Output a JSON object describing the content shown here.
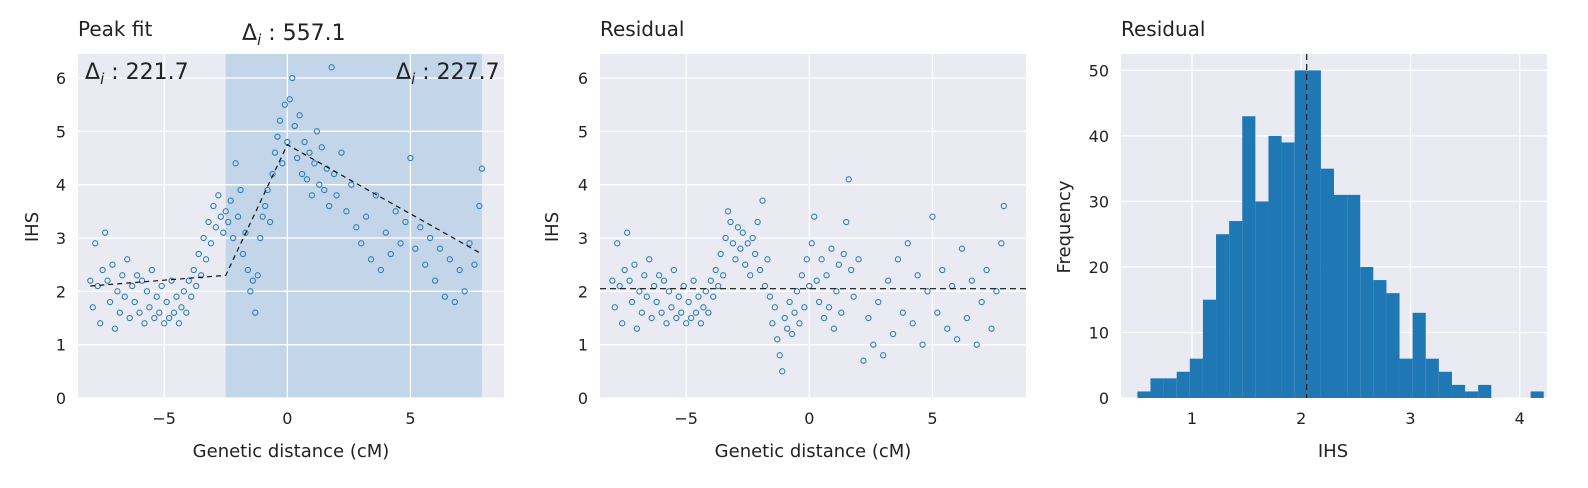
{
  "figure": {
    "panels": [
      {
        "title": "Peak fit",
        "xlabel": "Genetic distance (cM)",
        "ylabel": "IHS"
      },
      {
        "title": "Residual",
        "xlabel": "Genetic distance (cM)",
        "ylabel": "IHS"
      },
      {
        "title": "Residual",
        "xlabel": "IHS",
        "ylabel": "Frequency"
      }
    ],
    "annotations": {
      "top": {
        "symbol": "Δ",
        "sub": "i",
        "text": " : 557.1"
      },
      "left": {
        "symbol": "Δ",
        "sub": "i",
        "text": " : 221.7"
      },
      "right": {
        "symbol": "Δ",
        "sub": "i",
        "text": " : 227.7"
      }
    }
  },
  "colors": {
    "axes_bg": "#e9eaf2",
    "grid": "#ffffff",
    "marker": "#2f7fb8",
    "bar": "#1f77b4",
    "shade": "#a9c7e3",
    "line": "#111111"
  },
  "chart_data": [
    {
      "type": "scatter",
      "title": "Peak fit",
      "xlabel": "Genetic distance (cM)",
      "ylabel": "IHS",
      "xlim": [
        -8.5,
        8.8
      ],
      "ylim": [
        0,
        6.45
      ],
      "xticks": [
        -5,
        0,
        5
      ],
      "yticks": [
        0,
        1,
        2,
        3,
        4,
        5,
        6
      ],
      "grid": true,
      "marker": "open circle",
      "shaded_region": [
        -2.5,
        7.9
      ],
      "fit_line": {
        "x": [
          -8.0,
          -2.5,
          0.0,
          7.9
        ],
        "y": [
          2.1,
          2.3,
          4.75,
          2.7
        ],
        "style": "dashed"
      },
      "points": [
        [
          -8.0,
          2.2
        ],
        [
          -7.9,
          1.7
        ],
        [
          -7.8,
          2.9
        ],
        [
          -7.7,
          2.1
        ],
        [
          -7.6,
          1.4
        ],
        [
          -7.5,
          2.4
        ],
        [
          -7.4,
          3.1
        ],
        [
          -7.3,
          2.2
        ],
        [
          -7.2,
          1.8
        ],
        [
          -7.1,
          2.5
        ],
        [
          -7.0,
          1.3
        ],
        [
          -6.9,
          2.0
        ],
        [
          -6.8,
          1.6
        ],
        [
          -6.7,
          2.3
        ],
        [
          -6.6,
          1.9
        ],
        [
          -6.5,
          2.6
        ],
        [
          -6.4,
          1.5
        ],
        [
          -6.3,
          2.1
        ],
        [
          -6.2,
          1.8
        ],
        [
          -6.1,
          2.3
        ],
        [
          -6.0,
          1.6
        ],
        [
          -5.9,
          2.2
        ],
        [
          -5.8,
          1.4
        ],
        [
          -5.7,
          2.0
        ],
        [
          -5.6,
          1.7
        ],
        [
          -5.5,
          2.4
        ],
        [
          -5.4,
          1.5
        ],
        [
          -5.3,
          1.9
        ],
        [
          -5.2,
          1.6
        ],
        [
          -5.1,
          2.1
        ],
        [
          -5.0,
          1.4
        ],
        [
          -4.9,
          1.8
        ],
        [
          -4.8,
          1.5
        ],
        [
          -4.7,
          2.2
        ],
        [
          -4.6,
          1.6
        ],
        [
          -4.5,
          1.9
        ],
        [
          -4.4,
          1.4
        ],
        [
          -4.3,
          1.7
        ],
        [
          -4.2,
          2.0
        ],
        [
          -4.1,
          1.6
        ],
        [
          -4.0,
          2.2
        ],
        [
          -3.9,
          1.9
        ],
        [
          -3.8,
          2.4
        ],
        [
          -3.7,
          2.1
        ],
        [
          -3.6,
          2.7
        ],
        [
          -3.5,
          2.3
        ],
        [
          -3.4,
          3.0
        ],
        [
          -3.3,
          2.6
        ],
        [
          -3.2,
          3.3
        ],
        [
          -3.1,
          2.9
        ],
        [
          -3.0,
          3.6
        ],
        [
          -2.9,
          3.2
        ],
        [
          -2.8,
          3.8
        ],
        [
          -2.7,
          3.4
        ],
        [
          -2.6,
          3.1
        ],
        [
          -2.5,
          3.5
        ],
        [
          -2.4,
          3.3
        ],
        [
          -2.3,
          3.7
        ],
        [
          -2.2,
          3.0
        ],
        [
          -2.1,
          4.4
        ],
        [
          -2.0,
          3.4
        ],
        [
          -1.9,
          3.9
        ],
        [
          -1.8,
          2.7
        ],
        [
          -1.7,
          3.1
        ],
        [
          -1.6,
          2.4
        ],
        [
          -1.5,
          2.0
        ],
        [
          -1.4,
          2.2
        ],
        [
          -1.3,
          1.6
        ],
        [
          -1.2,
          2.3
        ],
        [
          -1.1,
          3.0
        ],
        [
          -1.0,
          3.4
        ],
        [
          -0.9,
          3.6
        ],
        [
          -0.8,
          3.9
        ],
        [
          -0.7,
          3.3
        ],
        [
          -0.6,
          4.2
        ],
        [
          -0.5,
          4.6
        ],
        [
          -0.4,
          4.9
        ],
        [
          -0.3,
          5.2
        ],
        [
          -0.2,
          4.4
        ],
        [
          -0.1,
          5.5
        ],
        [
          0.0,
          4.8
        ],
        [
          0.1,
          5.6
        ],
        [
          0.2,
          6.0
        ],
        [
          0.3,
          5.1
        ],
        [
          0.4,
          4.5
        ],
        [
          0.5,
          5.3
        ],
        [
          0.6,
          4.2
        ],
        [
          0.7,
          4.8
        ],
        [
          0.8,
          4.1
        ],
        [
          0.9,
          4.6
        ],
        [
          1.0,
          3.8
        ],
        [
          1.1,
          4.4
        ],
        [
          1.2,
          5.0
        ],
        [
          1.3,
          4.0
        ],
        [
          1.4,
          4.7
        ],
        [
          1.5,
          3.9
        ],
        [
          1.6,
          4.3
        ],
        [
          1.7,
          3.6
        ],
        [
          1.8,
          6.2
        ],
        [
          1.9,
          4.2
        ],
        [
          2.0,
          3.8
        ],
        [
          2.2,
          4.6
        ],
        [
          2.4,
          3.5
        ],
        [
          2.6,
          4.0
        ],
        [
          2.8,
          3.2
        ],
        [
          3.0,
          2.9
        ],
        [
          3.2,
          3.4
        ],
        [
          3.4,
          2.6
        ],
        [
          3.6,
          3.8
        ],
        [
          3.8,
          2.4
        ],
        [
          4.0,
          3.1
        ],
        [
          4.2,
          2.7
        ],
        [
          4.4,
          3.5
        ],
        [
          4.6,
          2.9
        ],
        [
          4.8,
          3.3
        ],
        [
          5.0,
          4.5
        ],
        [
          5.2,
          2.8
        ],
        [
          5.4,
          3.2
        ],
        [
          5.6,
          2.5
        ],
        [
          5.8,
          3.0
        ],
        [
          6.0,
          2.2
        ],
        [
          6.2,
          2.8
        ],
        [
          6.4,
          1.9
        ],
        [
          6.6,
          2.6
        ],
        [
          6.8,
          1.8
        ],
        [
          7.0,
          2.4
        ],
        [
          7.2,
          2.0
        ],
        [
          7.4,
          2.9
        ],
        [
          7.6,
          2.5
        ],
        [
          7.8,
          3.6
        ],
        [
          7.9,
          4.3
        ]
      ]
    },
    {
      "type": "scatter",
      "title": "Residual",
      "xlabel": "Genetic distance (cM)",
      "ylabel": "IHS",
      "xlim": [
        -8.5,
        8.8
      ],
      "ylim": [
        0,
        6.45
      ],
      "xticks": [
        -5,
        0,
        5
      ],
      "yticks": [
        0,
        1,
        2,
        3,
        4,
        5,
        6
      ],
      "grid": true,
      "marker": "open circle",
      "hline": {
        "y": 2.05,
        "style": "dashed"
      },
      "points": [
        [
          -8.0,
          2.2
        ],
        [
          -7.9,
          1.7
        ],
        [
          -7.8,
          2.9
        ],
        [
          -7.7,
          2.1
        ],
        [
          -7.6,
          1.4
        ],
        [
          -7.5,
          2.4
        ],
        [
          -7.4,
          3.1
        ],
        [
          -7.3,
          2.2
        ],
        [
          -7.2,
          1.8
        ],
        [
          -7.1,
          2.5
        ],
        [
          -7.0,
          1.3
        ],
        [
          -6.9,
          2.0
        ],
        [
          -6.8,
          1.6
        ],
        [
          -6.7,
          2.3
        ],
        [
          -6.6,
          1.9
        ],
        [
          -6.5,
          2.6
        ],
        [
          -6.4,
          1.5
        ],
        [
          -6.3,
          2.1
        ],
        [
          -6.2,
          1.8
        ],
        [
          -6.1,
          2.3
        ],
        [
          -6.0,
          1.6
        ],
        [
          -5.9,
          2.2
        ],
        [
          -5.8,
          1.4
        ],
        [
          -5.7,
          2.0
        ],
        [
          -5.6,
          1.7
        ],
        [
          -5.5,
          2.4
        ],
        [
          -5.4,
          1.5
        ],
        [
          -5.3,
          1.9
        ],
        [
          -5.2,
          1.6
        ],
        [
          -5.1,
          2.1
        ],
        [
          -5.0,
          1.4
        ],
        [
          -4.9,
          1.8
        ],
        [
          -4.8,
          1.5
        ],
        [
          -4.7,
          2.2
        ],
        [
          -4.6,
          1.6
        ],
        [
          -4.5,
          1.9
        ],
        [
          -4.4,
          1.4
        ],
        [
          -4.3,
          1.7
        ],
        [
          -4.2,
          2.0
        ],
        [
          -4.1,
          1.6
        ],
        [
          -4.0,
          2.2
        ],
        [
          -3.9,
          1.9
        ],
        [
          -3.8,
          2.4
        ],
        [
          -3.7,
          2.1
        ],
        [
          -3.6,
          2.7
        ],
        [
          -3.5,
          2.3
        ],
        [
          -3.4,
          3.0
        ],
        [
          -3.3,
          3.5
        ],
        [
          -3.2,
          3.3
        ],
        [
          -3.1,
          2.9
        ],
        [
          -3.0,
          2.6
        ],
        [
          -2.9,
          3.2
        ],
        [
          -2.8,
          2.8
        ],
        [
          -2.7,
          3.1
        ],
        [
          -2.6,
          2.5
        ],
        [
          -2.5,
          2.9
        ],
        [
          -2.4,
          2.3
        ],
        [
          -2.3,
          3.0
        ],
        [
          -2.2,
          2.7
        ],
        [
          -2.1,
          3.3
        ],
        [
          -2.0,
          2.4
        ],
        [
          -1.9,
          3.7
        ],
        [
          -1.8,
          2.1
        ],
        [
          -1.7,
          2.6
        ],
        [
          -1.6,
          1.9
        ],
        [
          -1.5,
          1.4
        ],
        [
          -1.4,
          1.7
        ],
        [
          -1.3,
          1.1
        ],
        [
          -1.2,
          0.8
        ],
        [
          -1.1,
          0.5
        ],
        [
          -1.0,
          1.5
        ],
        [
          -0.9,
          1.3
        ],
        [
          -0.8,
          1.8
        ],
        [
          -0.7,
          1.2
        ],
        [
          -0.6,
          1.6
        ],
        [
          -0.5,
          2.0
        ],
        [
          -0.4,
          1.4
        ],
        [
          -0.3,
          2.3
        ],
        [
          -0.2,
          1.7
        ],
        [
          -0.1,
          2.6
        ],
        [
          0.0,
          2.1
        ],
        [
          0.1,
          2.9
        ],
        [
          0.2,
          3.4
        ],
        [
          0.3,
          2.2
        ],
        [
          0.4,
          1.8
        ],
        [
          0.5,
          2.6
        ],
        [
          0.6,
          1.5
        ],
        [
          0.7,
          2.3
        ],
        [
          0.8,
          1.7
        ],
        [
          0.9,
          2.8
        ],
        [
          1.0,
          1.3
        ],
        [
          1.1,
          2.0
        ],
        [
          1.2,
          2.5
        ],
        [
          1.3,
          1.6
        ],
        [
          1.4,
          2.7
        ],
        [
          1.5,
          3.3
        ],
        [
          1.6,
          4.1
        ],
        [
          1.7,
          2.4
        ],
        [
          1.8,
          1.9
        ],
        [
          2.0,
          2.6
        ],
        [
          2.2,
          0.7
        ],
        [
          2.4,
          1.5
        ],
        [
          2.6,
          1.0
        ],
        [
          2.8,
          1.8
        ],
        [
          3.0,
          0.8
        ],
        [
          3.2,
          2.2
        ],
        [
          3.4,
          1.2
        ],
        [
          3.6,
          2.6
        ],
        [
          3.8,
          1.6
        ],
        [
          4.0,
          2.9
        ],
        [
          4.2,
          1.4
        ],
        [
          4.4,
          2.3
        ],
        [
          4.6,
          1.0
        ],
        [
          4.8,
          2.0
        ],
        [
          5.0,
          3.4
        ],
        [
          5.2,
          1.6
        ],
        [
          5.4,
          2.4
        ],
        [
          5.6,
          1.3
        ],
        [
          5.8,
          2.1
        ],
        [
          6.0,
          1.1
        ],
        [
          6.2,
          2.8
        ],
        [
          6.4,
          1.5
        ],
        [
          6.6,
          2.2
        ],
        [
          6.8,
          1.0
        ],
        [
          7.0,
          1.8
        ],
        [
          7.2,
          2.4
        ],
        [
          7.4,
          1.3
        ],
        [
          7.6,
          2.0
        ],
        [
          7.8,
          2.9
        ],
        [
          7.9,
          3.6
        ]
      ]
    },
    {
      "type": "bar",
      "title": "Residual",
      "xlabel": "IHS",
      "ylabel": "Frequency",
      "xlim": [
        0.35,
        4.25
      ],
      "ylim": [
        0,
        52.5
      ],
      "xticks": [
        1,
        2,
        3,
        4
      ],
      "yticks": [
        0,
        10,
        20,
        30,
        40,
        50
      ],
      "grid": true,
      "bin_start": 0.5,
      "bin_width": 0.12,
      "values": [
        1,
        3,
        3,
        4,
        6,
        15,
        25,
        27,
        43,
        30,
        40,
        39,
        50,
        50,
        35,
        31,
        31,
        20,
        18,
        16,
        6,
        13,
        6,
        4,
        2,
        1,
        2,
        0,
        0,
        0,
        1
      ],
      "vline": {
        "x": 2.05,
        "style": "dashed"
      }
    }
  ]
}
